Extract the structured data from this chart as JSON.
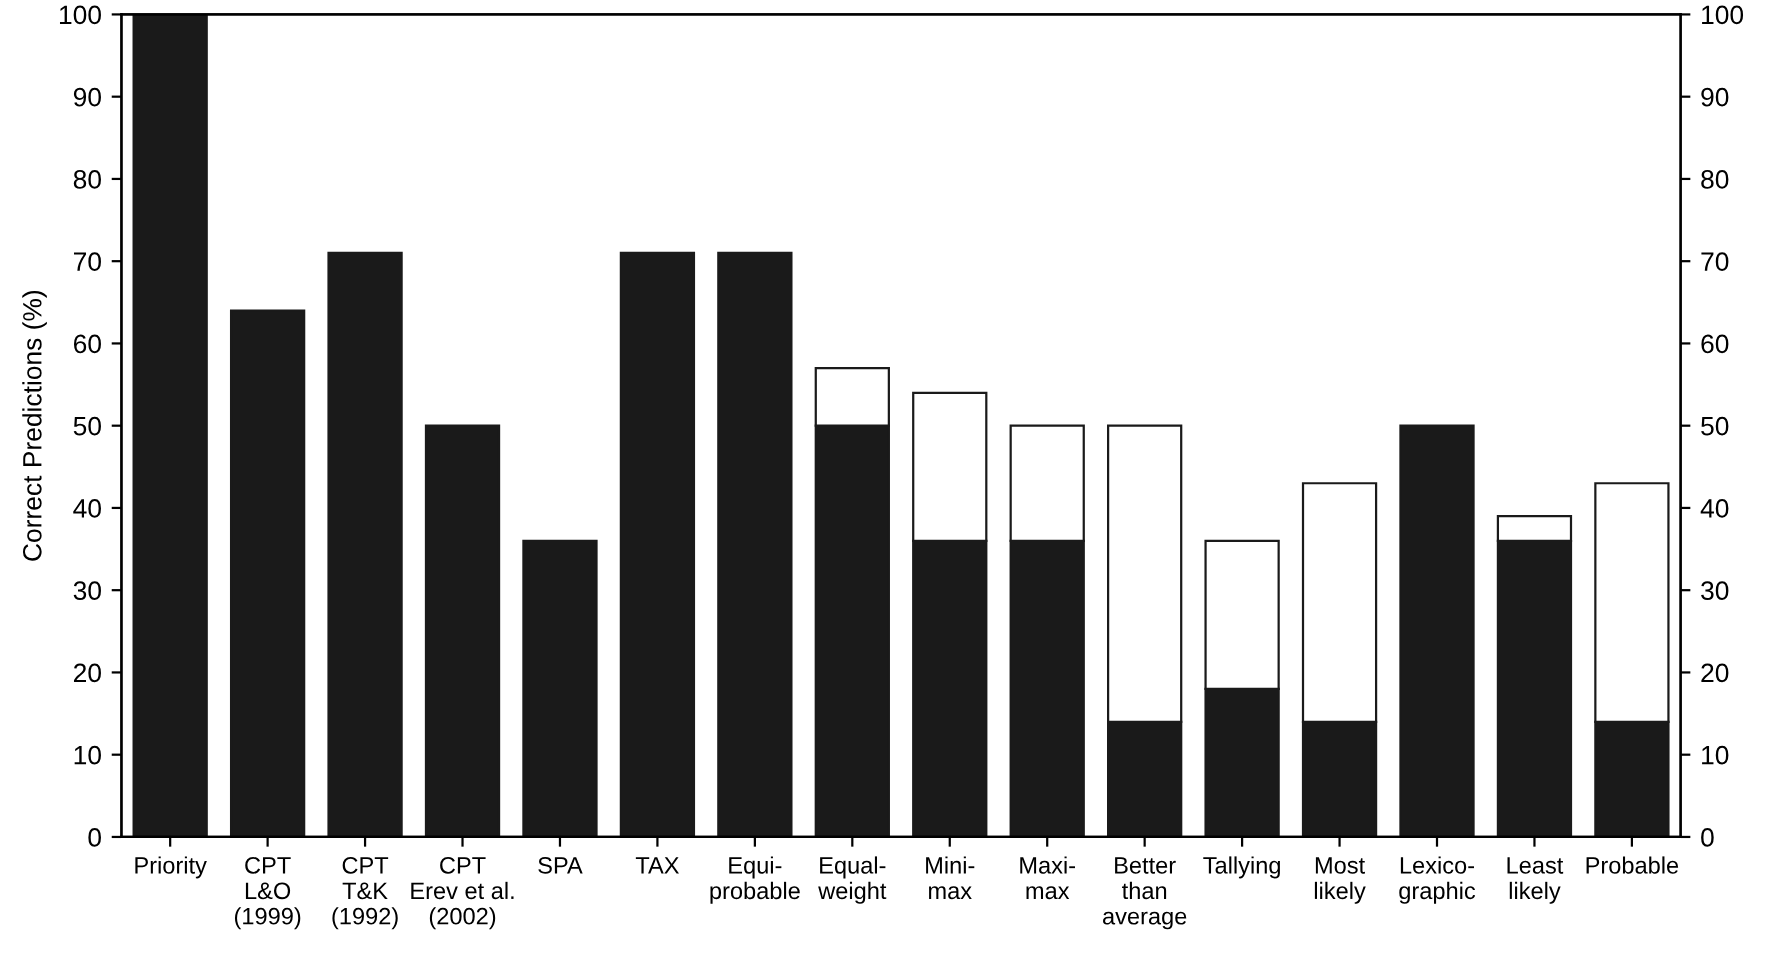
{
  "chart_data": {
    "type": "bar",
    "stacked": true,
    "ylabel": "Correct Predictions (%)",
    "categories": [
      "Priority",
      "CPT\nL&O\n(1999)",
      "CPT\nT&K\n(1992)",
      "CPT\nErev et al.\n(2002)",
      "SPA",
      "TAX",
      "Equi-\nprobable",
      "Equal-\nweight",
      "Mini-\nmax",
      "Maxi-\nmax",
      "Better\nthan\naverage",
      "Tallying",
      "Most\nlikely",
      "Lexico-\ngraphic",
      "Least\nlikely",
      "Probable"
    ],
    "series": [
      {
        "color": "#1a1a1a",
        "values": [
          100,
          64,
          71,
          50,
          36,
          71,
          71,
          50,
          36,
          36,
          14,
          18,
          14,
          50,
          36,
          14
        ]
      },
      {
        "color": "#ffffff",
        "values": [
          null,
          null,
          null,
          null,
          null,
          null,
          null,
          7,
          18,
          14,
          36,
          18,
          29,
          null,
          3,
          29
        ]
      }
    ],
    "ylim": [
      0,
      100
    ],
    "yticks": [
      0,
      10,
      20,
      30,
      40,
      50,
      60,
      70,
      80,
      90,
      100
    ],
    "y2lim": [
      0,
      100
    ],
    "y2ticks": [
      0,
      10,
      20,
      30,
      40,
      50,
      60,
      70,
      80,
      90,
      100
    ],
    "grid": false
  }
}
